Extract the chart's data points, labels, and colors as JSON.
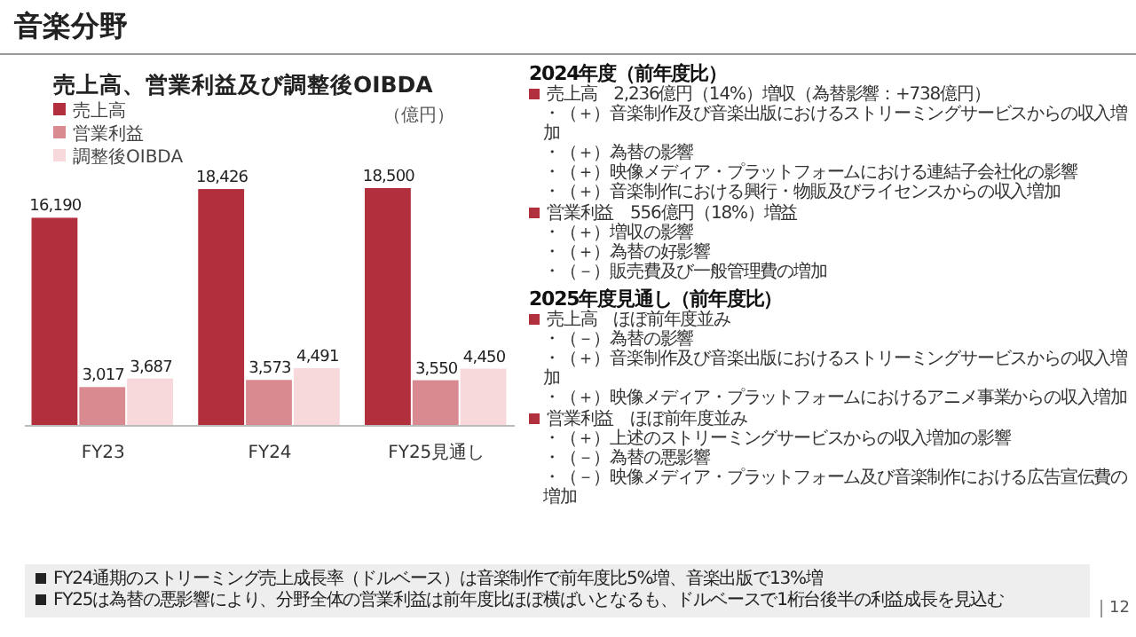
{
  "chart_data": {
    "type": "bar",
    "title": "売上高、営業利益及び調整後OIBDA",
    "ylabel": "（億円）",
    "categories": [
      "FY23",
      "FY24",
      "FY25見通し"
    ],
    "series": [
      {
        "name": "売上高",
        "color": "#b22f3d",
        "values": [
          16190,
          18426,
          18500
        ],
        "value_labels": [
          "16,190",
          "18,426",
          "18,500"
        ]
      },
      {
        "name": "営業利益",
        "color": "#d98a90",
        "values": [
          3017,
          3573,
          3550
        ],
        "value_labels": [
          "3,017",
          "3,573",
          "3,550"
        ]
      },
      {
        "name": "調整後OIBDA",
        "color": "#f7d9dc",
        "values": [
          3687,
          4491,
          4450
        ],
        "value_labels": [
          "3,687",
          "4,491",
          "4,450"
        ]
      }
    ],
    "legend": "top left",
    "annotations": [
      "音楽分野",
      "2024年度（前年度比）",
      "売上高　2,236億円（14%）増収（為替影響：+738億円）",
      "・（＋）音楽制作及び音楽出版におけるストリーミングサービスからの収入増加",
      "・（＋）為替の影響",
      "・（＋）映像メディア・プラットフォームにおける連結子会社化の影響",
      "・（＋）音楽制作における興行・物販及びライセンスからの収入増加",
      "営業利益　556億円（18%）増益",
      "・（＋）増収の影響",
      "・（＋）為替の好影響",
      "・（－）販売費及び一般管理費の増加",
      "2025年度見通し（前年度比）",
      "売上高　ほぼ前年度並み",
      "・（－）為替の影響",
      "・（＋）音楽制作及び音楽出版におけるストリーミングサービスからの収入増加",
      "・（＋）映像メディア・プラットフォームにおけるアニメ事業からの収入増加",
      "営業利益　ほぼ前年度並み",
      "・（＋）上述のストリーミングサービスからの収入増加の影響",
      "・（－）為替の悪影響",
      "・（－）映像メディア・プラットフォーム及び音楽制作における広告宣伝費の増加",
      "FY24通期のストリーミング売上成長率（ドルベース）は音楽制作で前年度比5%増、音楽出版で13%増",
      "FY25は為替の悪影響により、分野全体の営業利益は前年度比ほぼ横ばいとなるも、ドルベースで1桁台後半の利益成長を見込む",
      "12"
    ]
  }
}
